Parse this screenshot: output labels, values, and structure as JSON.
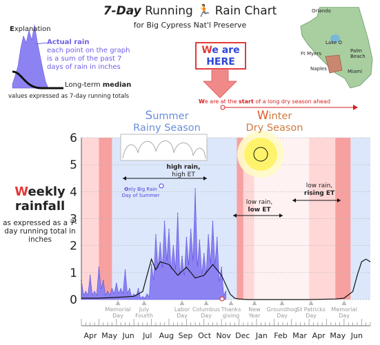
{
  "title": {
    "bold": "7-Day",
    "rest": " Running",
    "rest2": " Rain Chart"
  },
  "subtitle": "for Big Cypress Nat'l Preserve",
  "explanation": {
    "heading_first": "E",
    "heading_rest": "xplanation",
    "actual_rain_label": "Actual rain",
    "actual_rain_text": [
      "each point on the graph",
      "is a sum of the past 7",
      "days of rain in inches"
    ],
    "median_prefix": "Long-term ",
    "median_bold": "median",
    "footer": "values expressed as 7-day running totals"
  },
  "here_box": {
    "first": "W",
    "line1_rest": "e are",
    "line2": "HERE"
  },
  "dry_season_note": {
    "w": "W",
    "a": "e are at the ",
    "bold": "start",
    "b": " of a long dry season ahead"
  },
  "seasons": {
    "summer": {
      "first": "S",
      "line1_rest": "ummer",
      "line2": "Rainy  Season"
    },
    "winter": {
      "first": "W",
      "line1_rest": "inter",
      "line2": "Dry Season"
    }
  },
  "ylabel": {
    "first": "W",
    "line1_rest": "eekly",
    "line2": "rainfall",
    "sub": "as expressed as a 7-day running total in inches"
  },
  "annotations": {
    "high_rain": {
      "line1": "high rain,",
      "line2": "high ET"
    },
    "low_rain_low": {
      "line1": "low rain,",
      "line2": "low ET"
    },
    "low_rain_rising": {
      "line1": "low rain,",
      "line2": "rising ET"
    },
    "peak": {
      "o": "O",
      "line1": "nly Big Rain",
      "line2": "Day of Summer"
    }
  },
  "holidays": [
    {
      "l1": "Memorial",
      "l2": "Day"
    },
    {
      "l1": "July",
      "l2": "Fourth"
    },
    {
      "l1": "Labor",
      "l2": "Day"
    },
    {
      "l1": "Columbus",
      "l2": "Day"
    },
    {
      "l1": "Thanks",
      "l2": "giving"
    },
    {
      "l1": "New",
      "l2": "Year"
    },
    {
      "l1": "Groundhog",
      "l2": "Day"
    },
    {
      "l1": "St Patricks",
      "l2": "Day"
    },
    {
      "l1": "Memorial",
      "l2": "Day"
    }
  ],
  "map_labels": [
    "Orlando",
    "Lake O",
    "Ft Myers",
    "Palm Beach",
    "Naples",
    "Miami"
  ],
  "colors": {
    "rain_fill": "#8c82f2",
    "rain_edge": "#5b4fdc",
    "median": "#111111",
    "wet_band": "#dce7fb",
    "dry_band": "#ffd7d7",
    "transition_band": "#f7a0a0",
    "accent_red": "#e23a3a",
    "sun": "#fff36b"
  },
  "chart_data": {
    "type": "area",
    "ylim": [
      0,
      6
    ],
    "yticks": [
      0,
      1,
      2,
      3,
      4,
      5,
      6
    ],
    "xlabels": [
      "Apr",
      "May",
      "Jun",
      "Jul",
      "Aug",
      "Sep",
      "Oct",
      "Nov",
      "Dec",
      "Jan",
      "Feb",
      "Mar",
      "Apr",
      "May",
      "Jun"
    ],
    "series": [
      {
        "name": "Actual rain",
        "x_week": [
          0,
          1,
          2,
          3,
          4,
          5,
          6,
          7,
          8,
          9,
          10,
          11,
          12,
          13,
          14,
          15,
          16,
          17,
          18,
          19,
          20,
          21,
          22,
          23,
          24,
          25,
          26,
          27,
          28,
          29,
          30,
          31,
          32,
          33
        ],
        "values": [
          0.7,
          0.3,
          0.9,
          0.3,
          1.2,
          0.7,
          0.3,
          0.4,
          0.6,
          0.4,
          1.1,
          0.4,
          0.2,
          0.4,
          0.1,
          0.2,
          1.3,
          2.4,
          2.1,
          2.9,
          2.6,
          2.0,
          3.2,
          1.6,
          2.3,
          2.6,
          4.1,
          2.2,
          1.7,
          2.4,
          2.9,
          2.3,
          1.2,
          0.3
        ]
      },
      {
        "name": "Long-term median",
        "x_week": [
          0,
          4,
          8,
          12,
          14,
          15,
          16,
          17,
          18,
          20,
          22,
          24,
          26,
          28,
          30,
          32,
          34,
          35,
          36,
          38,
          44,
          52,
          58,
          60,
          62,
          63,
          64,
          65,
          66
        ],
        "values": [
          0.05,
          0.05,
          0.08,
          0.12,
          0.3,
          0.9,
          1.5,
          1.1,
          1.4,
          1.3,
          0.9,
          1.2,
          0.8,
          0.9,
          1.3,
          0.9,
          0.2,
          0.05,
          0.02,
          0.0,
          0.0,
          0.0,
          0.02,
          0.05,
          0.3,
          0.9,
          1.4,
          1.5,
          1.4
        ]
      }
    ]
  }
}
